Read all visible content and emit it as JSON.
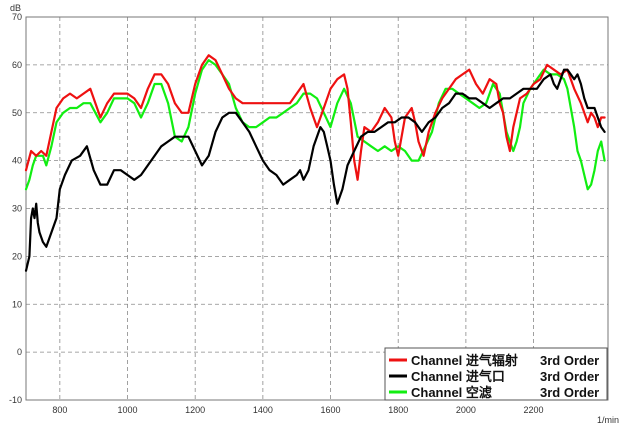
{
  "chart_data": {
    "type": "line",
    "ylabel": "dB",
    "xlabel": "1/min",
    "xlim": [
      700,
      2420
    ],
    "ylim": [
      -10,
      70
    ],
    "x_ticks": [
      800,
      1000,
      1200,
      1400,
      1600,
      1800,
      2000,
      2200
    ],
    "y_ticks": [
      -10,
      0,
      10,
      20,
      30,
      40,
      50,
      60,
      70
    ],
    "grid": "dashed",
    "legend_position": "bottom-right",
    "series": [
      {
        "name": "Channel 进气辐射",
        "order_label": "3rd Order",
        "color": "#ee1111",
        "points": [
          [
            700,
            38
          ],
          [
            715,
            42
          ],
          [
            730,
            41
          ],
          [
            745,
            42
          ],
          [
            760,
            41
          ],
          [
            775,
            46
          ],
          [
            790,
            51
          ],
          [
            810,
            53
          ],
          [
            830,
            54
          ],
          [
            850,
            53
          ],
          [
            870,
            54
          ],
          [
            890,
            55
          ],
          [
            905,
            52
          ],
          [
            920,
            49
          ],
          [
            940,
            52
          ],
          [
            960,
            54
          ],
          [
            980,
            54
          ],
          [
            1000,
            54
          ],
          [
            1020,
            53
          ],
          [
            1040,
            51
          ],
          [
            1060,
            55
          ],
          [
            1080,
            58
          ],
          [
            1100,
            58
          ],
          [
            1120,
            56
          ],
          [
            1140,
            52
          ],
          [
            1160,
            50
          ],
          [
            1180,
            50
          ],
          [
            1200,
            56
          ],
          [
            1220,
            60
          ],
          [
            1240,
            62
          ],
          [
            1260,
            61
          ],
          [
            1280,
            58
          ],
          [
            1300,
            55
          ],
          [
            1320,
            53
          ],
          [
            1340,
            52
          ],
          [
            1360,
            52
          ],
          [
            1380,
            52
          ],
          [
            1400,
            52
          ],
          [
            1420,
            52
          ],
          [
            1440,
            52
          ],
          [
            1460,
            52
          ],
          [
            1480,
            52
          ],
          [
            1500,
            54
          ],
          [
            1520,
            56
          ],
          [
            1540,
            51
          ],
          [
            1560,
            47
          ],
          [
            1580,
            51
          ],
          [
            1600,
            55
          ],
          [
            1620,
            57
          ],
          [
            1640,
            58
          ],
          [
            1650,
            55
          ],
          [
            1660,
            48
          ],
          [
            1670,
            40
          ],
          [
            1680,
            36
          ],
          [
            1690,
            42
          ],
          [
            1700,
            47
          ],
          [
            1720,
            46
          ],
          [
            1740,
            48
          ],
          [
            1760,
            51
          ],
          [
            1780,
            49
          ],
          [
            1790,
            44
          ],
          [
            1800,
            41
          ],
          [
            1810,
            45
          ],
          [
            1820,
            49
          ],
          [
            1840,
            51
          ],
          [
            1850,
            48
          ],
          [
            1860,
            44
          ],
          [
            1875,
            41
          ],
          [
            1890,
            46
          ],
          [
            1910,
            50
          ],
          [
            1930,
            53
          ],
          [
            1950,
            55
          ],
          [
            1970,
            57
          ],
          [
            1990,
            58
          ],
          [
            2010,
            59
          ],
          [
            2030,
            56
          ],
          [
            2050,
            54
          ],
          [
            2070,
            57
          ],
          [
            2090,
            56
          ],
          [
            2100,
            52
          ],
          [
            2110,
            50
          ],
          [
            2120,
            45
          ],
          [
            2130,
            42
          ],
          [
            2140,
            47
          ],
          [
            2160,
            53
          ],
          [
            2180,
            54
          ],
          [
            2200,
            56
          ],
          [
            2220,
            57
          ],
          [
            2240,
            60
          ],
          [
            2260,
            59
          ],
          [
            2280,
            58
          ],
          [
            2300,
            59
          ],
          [
            2320,
            55
          ],
          [
            2340,
            52
          ],
          [
            2360,
            48
          ],
          [
            2370,
            50
          ],
          [
            2380,
            49
          ],
          [
            2390,
            47
          ],
          [
            2400,
            49
          ],
          [
            2410,
            49
          ]
        ]
      },
      {
        "name": "Channel 进气口",
        "order_label": "3rd Order",
        "color": "#000000",
        "points": [
          [
            700,
            17
          ],
          [
            710,
            20
          ],
          [
            715,
            28
          ],
          [
            720,
            30
          ],
          [
            725,
            28
          ],
          [
            730,
            31
          ],
          [
            735,
            27
          ],
          [
            740,
            25
          ],
          [
            750,
            23
          ],
          [
            760,
            22
          ],
          [
            770,
            24
          ],
          [
            790,
            28
          ],
          [
            800,
            34
          ],
          [
            815,
            37
          ],
          [
            835,
            40
          ],
          [
            860,
            41
          ],
          [
            880,
            43
          ],
          [
            900,
            38
          ],
          [
            920,
            35
          ],
          [
            940,
            35
          ],
          [
            960,
            38
          ],
          [
            980,
            38
          ],
          [
            1000,
            37
          ],
          [
            1020,
            36
          ],
          [
            1040,
            37
          ],
          [
            1060,
            39
          ],
          [
            1080,
            41
          ],
          [
            1100,
            43
          ],
          [
            1120,
            44
          ],
          [
            1140,
            45
          ],
          [
            1160,
            45
          ],
          [
            1180,
            45
          ],
          [
            1200,
            42
          ],
          [
            1220,
            39
          ],
          [
            1240,
            41
          ],
          [
            1260,
            46
          ],
          [
            1280,
            49
          ],
          [
            1300,
            50
          ],
          [
            1320,
            50
          ],
          [
            1340,
            48
          ],
          [
            1360,
            46
          ],
          [
            1380,
            43
          ],
          [
            1400,
            40
          ],
          [
            1420,
            38
          ],
          [
            1440,
            37
          ],
          [
            1460,
            35
          ],
          [
            1480,
            36
          ],
          [
            1500,
            37
          ],
          [
            1510,
            38
          ],
          [
            1520,
            36
          ],
          [
            1535,
            38
          ],
          [
            1550,
            43
          ],
          [
            1570,
            47
          ],
          [
            1580,
            46
          ],
          [
            1590,
            43
          ],
          [
            1600,
            40
          ],
          [
            1610,
            35
          ],
          [
            1620,
            31
          ],
          [
            1635,
            34
          ],
          [
            1650,
            39
          ],
          [
            1670,
            42
          ],
          [
            1690,
            45
          ],
          [
            1710,
            46
          ],
          [
            1730,
            46
          ],
          [
            1750,
            47
          ],
          [
            1770,
            48
          ],
          [
            1790,
            48
          ],
          [
            1810,
            49
          ],
          [
            1830,
            49
          ],
          [
            1850,
            48
          ],
          [
            1870,
            46
          ],
          [
            1890,
            48
          ],
          [
            1910,
            49
          ],
          [
            1930,
            51
          ],
          [
            1950,
            52
          ],
          [
            1970,
            54
          ],
          [
            1990,
            54
          ],
          [
            2010,
            53
          ],
          [
            2030,
            53
          ],
          [
            2050,
            52
          ],
          [
            2070,
            51
          ],
          [
            2090,
            52
          ],
          [
            2110,
            53
          ],
          [
            2130,
            53
          ],
          [
            2150,
            54
          ],
          [
            2170,
            55
          ],
          [
            2190,
            55
          ],
          [
            2210,
            55
          ],
          [
            2230,
            57
          ],
          [
            2250,
            58
          ],
          [
            2260,
            56
          ],
          [
            2270,
            55
          ],
          [
            2280,
            57
          ],
          [
            2290,
            59
          ],
          [
            2300,
            59
          ],
          [
            2310,
            58
          ],
          [
            2320,
            57
          ],
          [
            2330,
            58
          ],
          [
            2340,
            56
          ],
          [
            2350,
            53
          ],
          [
            2360,
            51
          ],
          [
            2370,
            51
          ],
          [
            2380,
            51
          ],
          [
            2390,
            49
          ],
          [
            2400,
            47
          ],
          [
            2410,
            46
          ]
        ]
      },
      {
        "name": "Channel 空滤",
        "order_label": "3rd Order",
        "color": "#11ee11",
        "points": [
          [
            700,
            34
          ],
          [
            710,
            36
          ],
          [
            720,
            39
          ],
          [
            730,
            41
          ],
          [
            740,
            41
          ],
          [
            750,
            41
          ],
          [
            760,
            39
          ],
          [
            775,
            43
          ],
          [
            790,
            48
          ],
          [
            810,
            50
          ],
          [
            830,
            51
          ],
          [
            850,
            51
          ],
          [
            870,
            52
          ],
          [
            890,
            52
          ],
          [
            905,
            50
          ],
          [
            920,
            48
          ],
          [
            940,
            50
          ],
          [
            960,
            53
          ],
          [
            980,
            53
          ],
          [
            1000,
            53
          ],
          [
            1020,
            52
          ],
          [
            1040,
            49
          ],
          [
            1060,
            52
          ],
          [
            1080,
            56
          ],
          [
            1100,
            56
          ],
          [
            1120,
            52
          ],
          [
            1140,
            45
          ],
          [
            1160,
            44
          ],
          [
            1180,
            47
          ],
          [
            1200,
            54
          ],
          [
            1220,
            59
          ],
          [
            1240,
            61
          ],
          [
            1260,
            60
          ],
          [
            1280,
            58
          ],
          [
            1300,
            56
          ],
          [
            1320,
            51
          ],
          [
            1340,
            48
          ],
          [
            1360,
            47
          ],
          [
            1380,
            47
          ],
          [
            1400,
            48
          ],
          [
            1420,
            49
          ],
          [
            1440,
            49
          ],
          [
            1460,
            50
          ],
          [
            1480,
            51
          ],
          [
            1500,
            52
          ],
          [
            1520,
            54
          ],
          [
            1540,
            54
          ],
          [
            1560,
            53
          ],
          [
            1580,
            50
          ],
          [
            1600,
            47
          ],
          [
            1620,
            52
          ],
          [
            1640,
            55
          ],
          [
            1660,
            52
          ],
          [
            1680,
            45
          ],
          [
            1700,
            44
          ],
          [
            1720,
            43
          ],
          [
            1740,
            42
          ],
          [
            1760,
            43
          ],
          [
            1780,
            42
          ],
          [
            1800,
            43
          ],
          [
            1820,
            42
          ],
          [
            1840,
            40
          ],
          [
            1860,
            40
          ],
          [
            1880,
            43
          ],
          [
            1900,
            46
          ],
          [
            1920,
            52
          ],
          [
            1940,
            55
          ],
          [
            1960,
            55
          ],
          [
            1980,
            54
          ],
          [
            2000,
            53
          ],
          [
            2020,
            52
          ],
          [
            2040,
            51
          ],
          [
            2060,
            52
          ],
          [
            2080,
            56
          ],
          [
            2100,
            54
          ],
          [
            2110,
            50
          ],
          [
            2120,
            46
          ],
          [
            2130,
            44
          ],
          [
            2140,
            42
          ],
          [
            2150,
            44
          ],
          [
            2160,
            47
          ],
          [
            2170,
            52
          ],
          [
            2190,
            55
          ],
          [
            2210,
            57
          ],
          [
            2230,
            59
          ],
          [
            2250,
            58
          ],
          [
            2270,
            58
          ],
          [
            2290,
            57
          ],
          [
            2300,
            55
          ],
          [
            2310,
            51
          ],
          [
            2320,
            47
          ],
          [
            2330,
            42
          ],
          [
            2340,
            40
          ],
          [
            2350,
            37
          ],
          [
            2360,
            34
          ],
          [
            2370,
            35
          ],
          [
            2380,
            38
          ],
          [
            2390,
            42
          ],
          [
            2400,
            44
          ],
          [
            2410,
            40
          ]
        ]
      }
    ]
  }
}
